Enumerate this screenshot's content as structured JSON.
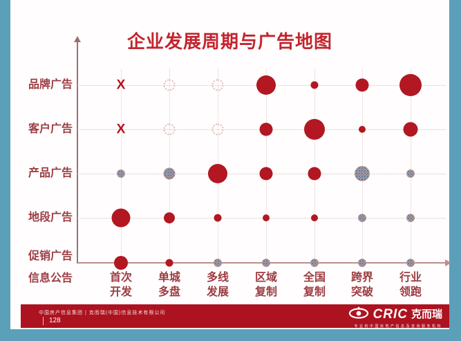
{
  "slide": {
    "title": "企业发展周期与广告地图"
  },
  "chart_data": {
    "type": "scatter",
    "subtype": "bubble-matrix",
    "title": "企业发展周期与广告地图",
    "x_categories": [
      "首次开发",
      "单城多盘",
      "多线发展",
      "区域复制",
      "全国复制",
      "跨界突破",
      "行业领跑"
    ],
    "y_categories": [
      "品牌广告",
      "客户广告",
      "产品广告",
      "地段广告",
      "促销广告/信息公告"
    ],
    "y_axis_display_labels": [
      "品牌广告",
      "客户广告",
      "产品广告",
      "地段广告",
      "促销广告",
      "信息公告"
    ],
    "grid": "dotted",
    "legend": "none",
    "marker_styles": {
      "red": "solid red bubble (active emphasis)",
      "gray": "speckled gray-blue bubble (secondary)",
      "hollow": "dotted hollow circle (optional/weak)",
      "x": "red X mark (not applicable)"
    },
    "cells": [
      [
        {
          "style": "x"
        },
        {
          "style": "hollow",
          "size": 13
        },
        {
          "style": "hollow",
          "size": 13
        },
        {
          "style": "red",
          "size": 28
        },
        {
          "style": "red",
          "size": 11
        },
        {
          "style": "red",
          "size": 19
        },
        {
          "style": "red",
          "size": 32
        }
      ],
      [
        {
          "style": "x"
        },
        {
          "style": "hollow",
          "size": 13
        },
        {
          "style": "hollow",
          "size": 13
        },
        {
          "style": "red",
          "size": 19
        },
        {
          "style": "red",
          "size": 30
        },
        {
          "style": "red",
          "size": 10
        },
        {
          "style": "red",
          "size": 21
        }
      ],
      [
        {
          "style": "gray",
          "size": 10
        },
        {
          "style": "gray",
          "size": 15
        },
        {
          "style": "red",
          "size": 28
        },
        {
          "style": "red",
          "size": 19
        },
        {
          "style": "red",
          "size": 19
        },
        {
          "style": "gray",
          "size": 20
        },
        {
          "style": "gray",
          "size": 10
        }
      ],
      [
        {
          "style": "red",
          "size": 27
        },
        {
          "style": "red",
          "size": 16
        },
        {
          "style": "red",
          "size": 11
        },
        {
          "style": "red",
          "size": 10
        },
        {
          "style": "red",
          "size": 10
        },
        {
          "style": "gray",
          "size": 10
        },
        {
          "style": "gray",
          "size": 10
        }
      ],
      [
        {
          "style": "red",
          "size": 20
        },
        {
          "style": "red",
          "size": 11
        },
        {
          "style": "gray",
          "size": 10
        },
        {
          "style": "gray",
          "size": 10
        },
        {
          "style": "gray",
          "size": 10
        },
        {
          "style": "gray",
          "size": 10
        },
        {
          "style": "gray",
          "size": 10
        }
      ]
    ]
  },
  "footer": {
    "source_text": "中国房产信息集团 | 克而瑞(中国)信息技术有限公司",
    "page_number": "128",
    "logo": {
      "eye_icon": "cric-eye-icon",
      "brand": "CRIC",
      "brand_cn": "克而瑞",
      "tagline": "专业的中国房地产信息及咨询服务机构"
    }
  },
  "colors": {
    "background_teal": "#5b9fb9",
    "slide_white": "#fffdfd",
    "accent_red": "#b21722",
    "title_red": "#c3242e",
    "label_red": "#9c3c42",
    "footer_red": "#ad1220",
    "grid_pink": "#e3cac8",
    "gray_bubble": "#97a2b1"
  }
}
